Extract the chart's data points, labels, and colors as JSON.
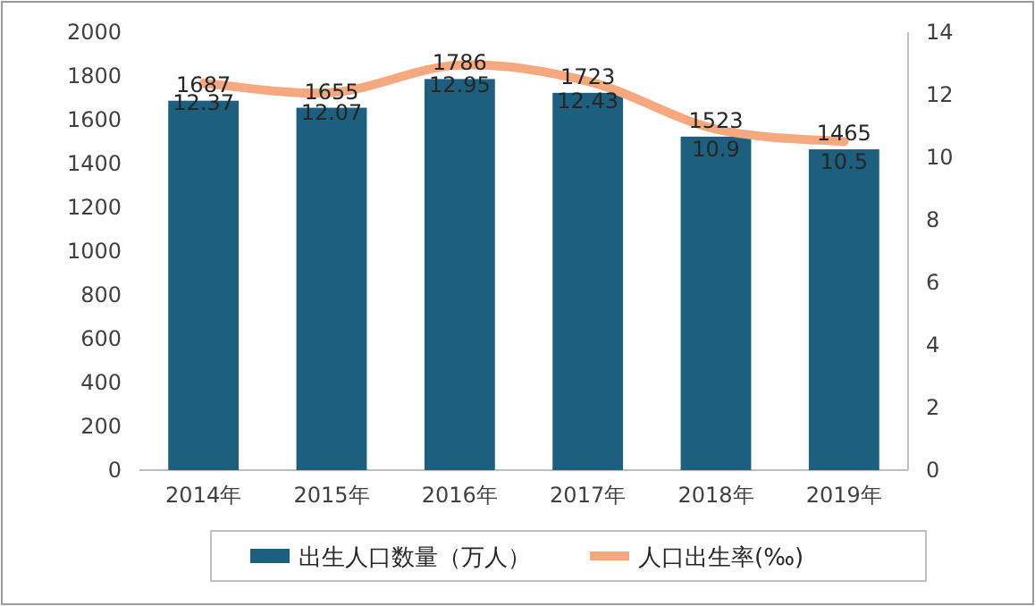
{
  "chart_data": {
    "type": "bar",
    "categories": [
      "2014年",
      "2015年",
      "2016年",
      "2017年",
      "2018年",
      "2019年"
    ],
    "series": [
      {
        "name": "出生人口数量（万人）",
        "color": "#1c5f7e",
        "values": [
          1687,
          1655,
          1786,
          1723,
          1523,
          1465
        ]
      },
      {
        "name": "人口出生率(‰)",
        "type": "line",
        "axis": "y2",
        "color": "#f6a97f",
        "values": [
          12.37,
          12.07,
          12.95,
          12.43,
          10.9,
          10.5
        ]
      }
    ],
    "ylim": [
      0,
      2000
    ],
    "yticks": [
      0,
      200,
      400,
      600,
      800,
      1000,
      1200,
      1400,
      1600,
      1800,
      2000
    ],
    "y2lim": [
      0,
      14
    ],
    "y2ticks": [
      0,
      2,
      4,
      6,
      8,
      10,
      12,
      14
    ],
    "data_labels": true,
    "legend": "bottom"
  }
}
